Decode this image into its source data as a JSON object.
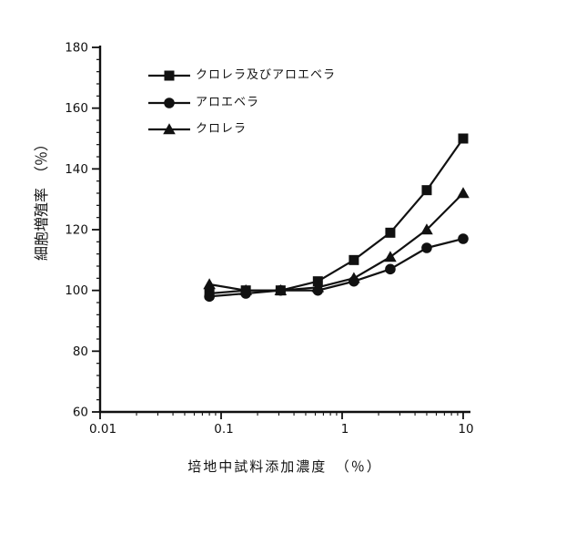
{
  "figure": {
    "background_color": "#ffffff",
    "ink_color": "#111111"
  },
  "chart_data": {
    "type": "line",
    "title": "",
    "xlabel": "培地中試料添加濃度　（％）",
    "ylabel": "細胞増殖率　（％）",
    "x_scale": "log",
    "xlim": [
      0.01,
      10
    ],
    "ylim": [
      60,
      180
    ],
    "x_ticks": [
      0.01,
      0.1,
      1,
      10
    ],
    "x_tick_labels": [
      "0.01",
      "0.1",
      "1",
      "10"
    ],
    "y_ticks": [
      60,
      80,
      100,
      120,
      140,
      160,
      180
    ],
    "y_tick_labels": [
      "60",
      "80",
      "100",
      "120",
      "140",
      "160",
      "180"
    ],
    "y_minor_step": 4,
    "grid": false,
    "legend_position": "upper-left-inside",
    "x": [
      0.08,
      0.16,
      0.31,
      0.63,
      1.25,
      2.5,
      5,
      10
    ],
    "series": [
      {
        "name": "クロレラ及びアロエベラ",
        "marker": "square",
        "color": "#111111",
        "values": [
          99,
          100,
          100,
          103,
          110,
          119,
          133,
          150
        ]
      },
      {
        "name": "アロエベラ",
        "marker": "circle",
        "color": "#111111",
        "values": [
          98,
          99,
          100,
          100,
          103,
          107,
          114,
          117
        ]
      },
      {
        "name": "クロレラ",
        "marker": "triangle",
        "color": "#111111",
        "values": [
          102,
          100,
          100,
          101,
          104,
          111,
          120,
          132
        ]
      }
    ]
  }
}
